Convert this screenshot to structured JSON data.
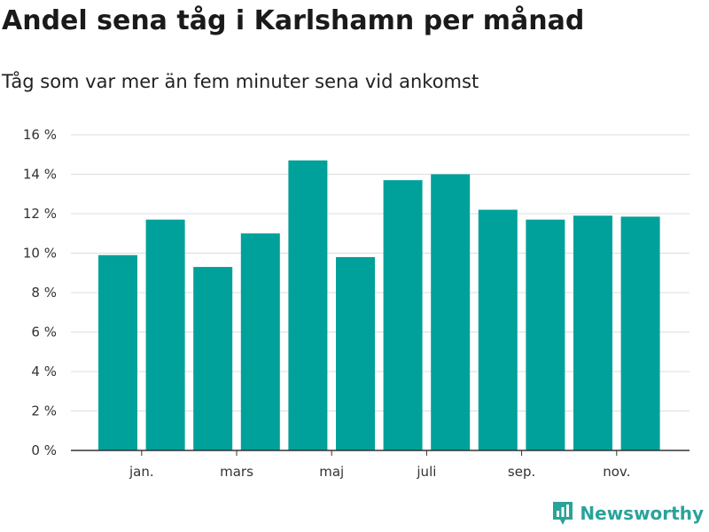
{
  "chart_data": {
    "type": "bar",
    "title": "Andel sena tåg i Karlshamn per månad",
    "subtitle": "Tåg som var mer än fem minuter sena vid ankomst",
    "xlabel": "",
    "ylabel": "",
    "ylim": [
      0,
      16
    ],
    "y_ticks": [
      0,
      2,
      4,
      6,
      8,
      10,
      12,
      14,
      16
    ],
    "y_tick_suffix": " %",
    "x_tick_labels": [
      {
        "label": "jan.",
        "index": 1
      },
      {
        "label": "mars",
        "index": 3
      },
      {
        "label": "maj",
        "index": 5
      },
      {
        "label": "juli",
        "index": 7
      },
      {
        "label": "sep.",
        "index": 9
      },
      {
        "label": "nov.",
        "index": 11
      }
    ],
    "values": [
      9.9,
      11.7,
      9.3,
      11.0,
      14.7,
      9.8,
      13.7,
      14.0,
      12.2,
      11.7,
      11.9,
      11.85
    ],
    "bar_color": "#00a19a",
    "grid": true,
    "legend": "none"
  },
  "brand": {
    "name": "Newsworthy",
    "icon": "bar-chart-badge-icon",
    "color": "#2aa39a"
  }
}
